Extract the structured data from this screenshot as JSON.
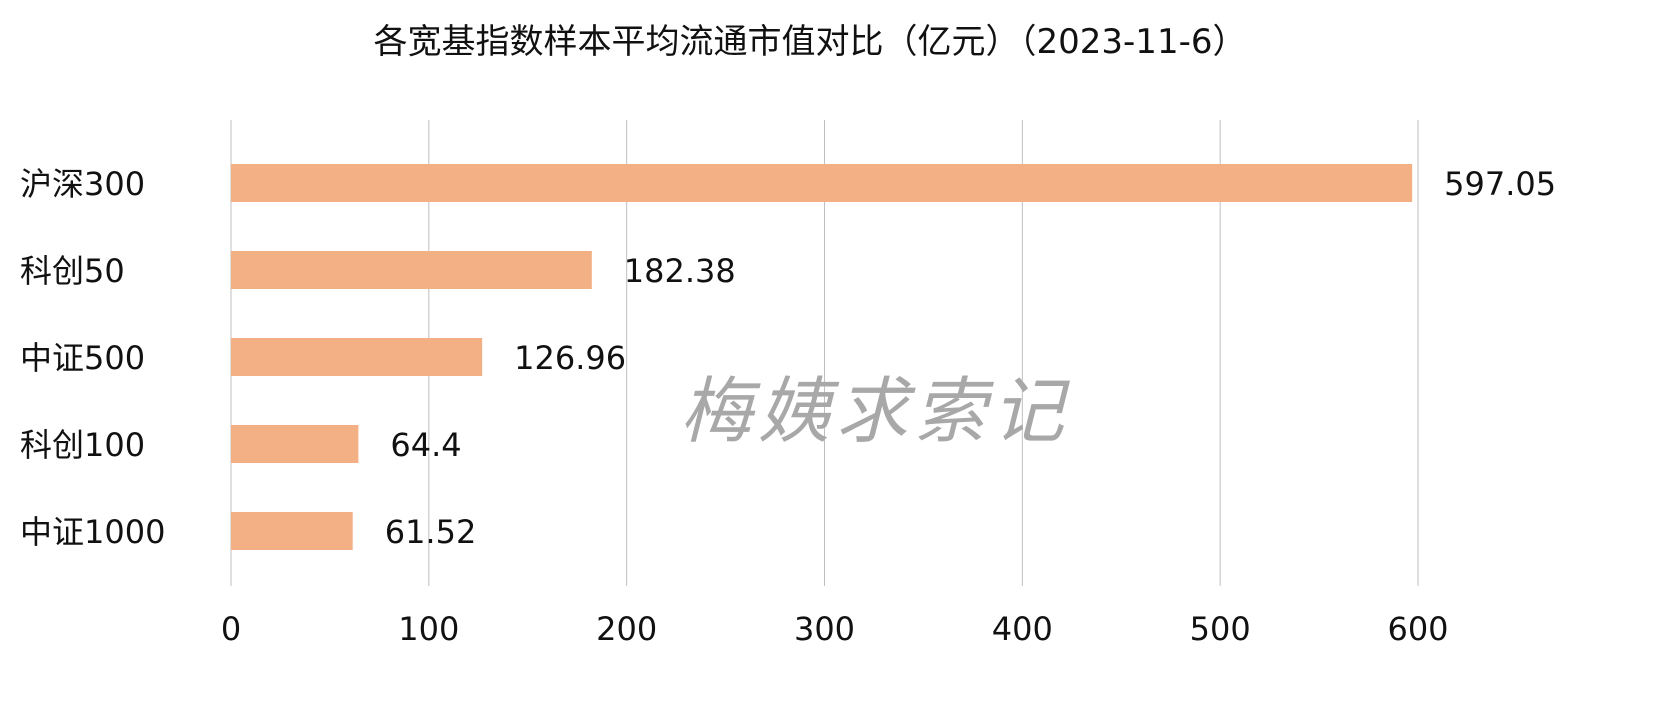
{
  "chart_data": {
    "type": "bar",
    "orientation": "horizontal",
    "title": "各宽基指数样本平均流通市值对比（亿元）（2023-11-6）",
    "categories": [
      "沪深300",
      "科创50",
      "中证500",
      "科创100",
      "中证1000"
    ],
    "values": [
      597.05,
      182.38,
      126.96,
      64.4,
      61.52
    ],
    "data_labels": [
      "597.05",
      "182.38",
      "126.96",
      "64.4",
      "61.52"
    ],
    "xlim": [
      0,
      600
    ],
    "xticks": [
      "0",
      "100",
      "200",
      "300",
      "400",
      "500",
      "600"
    ],
    "xlabel": "",
    "ylabel": "",
    "grid": true,
    "legend": "none",
    "bar_color": "#F2B084",
    "watermark": "梅姨求索记"
  }
}
